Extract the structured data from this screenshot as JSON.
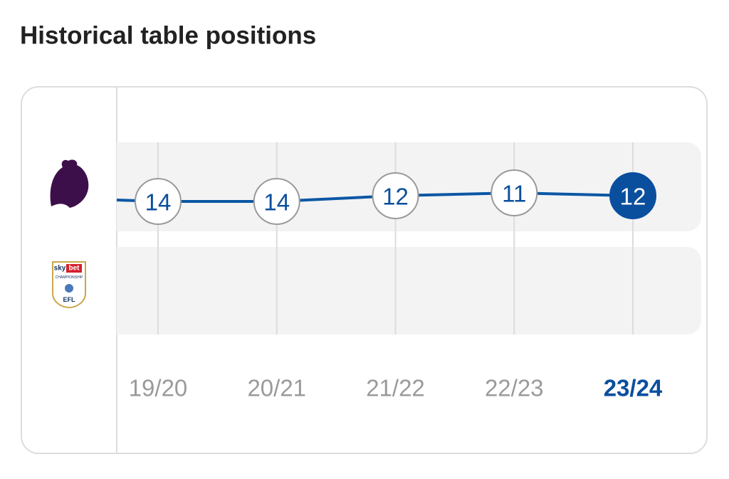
{
  "title": "Historical table positions",
  "badge": {
    "sky": "sky",
    "bet": "bet",
    "league": "CHAMPIONSHIP",
    "org": "EFL"
  },
  "chart_data": {
    "type": "line",
    "categories": [
      "19/20",
      "20/21",
      "21/22",
      "22/23",
      "23/24"
    ],
    "series": [
      {
        "values": [
          14,
          14,
          12,
          11,
          12
        ],
        "color": "#0b57a4"
      }
    ],
    "highlight_index": 4,
    "highlight_color": "#0a4f9e"
  }
}
